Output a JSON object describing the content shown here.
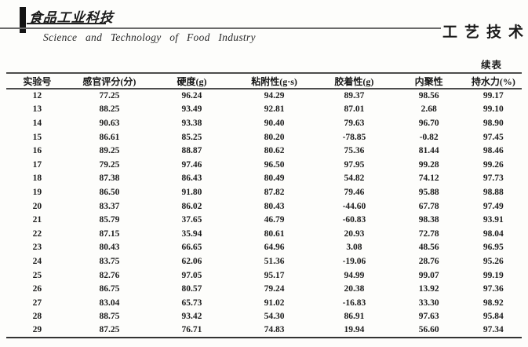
{
  "masthead": {
    "logo_cn": "食品工业科技",
    "journal_en": "Science and Technology of Food Industry",
    "section_title_cn": "工艺技术"
  },
  "table": {
    "continued_label": "续表",
    "columns": [
      "实验号",
      "感官评分(分)",
      "硬度(g)",
      "粘附性(g·s)",
      "胶着性(g)",
      "内聚性",
      "持水力(%)"
    ],
    "rows": [
      [
        "12",
        "77.25",
        "96.24",
        "94.29",
        "89.37",
        "98.56",
        "99.17"
      ],
      [
        "13",
        "88.25",
        "93.49",
        "92.81",
        "87.01",
        "2.68",
        "99.10"
      ],
      [
        "14",
        "90.63",
        "93.38",
        "90.40",
        "79.63",
        "96.70",
        "98.90"
      ],
      [
        "15",
        "86.61",
        "85.25",
        "80.20",
        "-78.85",
        "-0.82",
        "97.45"
      ],
      [
        "16",
        "89.25",
        "88.87",
        "80.62",
        "75.36",
        "81.44",
        "98.46"
      ],
      [
        "17",
        "79.25",
        "97.46",
        "96.50",
        "97.95",
        "99.28",
        "99.26"
      ],
      [
        "18",
        "87.38",
        "86.43",
        "80.49",
        "54.82",
        "74.12",
        "97.73"
      ],
      [
        "19",
        "86.50",
        "91.80",
        "87.82",
        "79.46",
        "95.88",
        "98.88"
      ],
      [
        "20",
        "83.37",
        "86.02",
        "80.43",
        "-44.60",
        "67.78",
        "97.49"
      ],
      [
        "21",
        "85.79",
        "37.65",
        "46.79",
        "-60.83",
        "98.38",
        "93.91"
      ],
      [
        "22",
        "87.15",
        "35.94",
        "80.61",
        "20.93",
        "72.78",
        "98.04"
      ],
      [
        "23",
        "80.43",
        "66.65",
        "64.96",
        "3.08",
        "48.56",
        "96.95"
      ],
      [
        "24",
        "83.75",
        "62.06",
        "51.36",
        "-19.06",
        "28.76",
        "95.26"
      ],
      [
        "25",
        "82.76",
        "97.05",
        "95.17",
        "94.99",
        "99.07",
        "99.19"
      ],
      [
        "26",
        "86.75",
        "80.57",
        "79.24",
        "20.38",
        "13.92",
        "97.36"
      ],
      [
        "27",
        "83.04",
        "65.73",
        "91.02",
        "-16.83",
        "33.30",
        "98.92"
      ],
      [
        "28",
        "88.75",
        "93.42",
        "54.30",
        "86.91",
        "97.63",
        "95.84"
      ],
      [
        "29",
        "87.25",
        "76.71",
        "74.83",
        "19.94",
        "56.60",
        "97.34"
      ]
    ]
  }
}
